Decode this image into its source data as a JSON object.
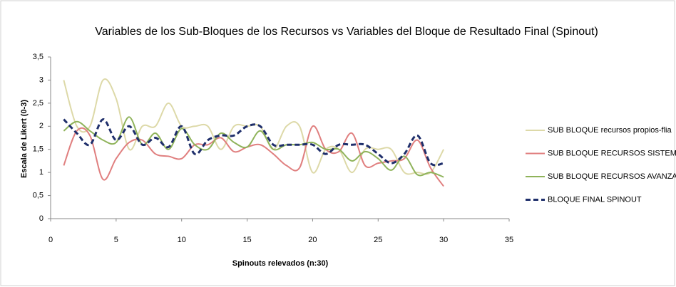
{
  "chart_data": {
    "type": "line",
    "title": "Variables de los Sub-Bloques de los Recursos vs Variables del Bloque de Resultado Final (Spinout)",
    "x_label": "Spinouts relevados (n:30)",
    "y_label": "Escala de Likert (0-3)",
    "x": [
      1,
      2,
      3,
      4,
      5,
      6,
      7,
      8,
      9,
      10,
      11,
      12,
      13,
      14,
      15,
      16,
      17,
      18,
      19,
      20,
      21,
      22,
      23,
      24,
      25,
      26,
      27,
      28,
      29,
      30
    ],
    "series": [
      {
        "name": "SUB BLOQUE recursos propios-flia",
        "color": "#ddd9a8",
        "dash": false,
        "values": [
          3,
          2,
          2,
          3,
          2.6,
          1.5,
          2,
          2,
          2.5,
          2,
          2,
          2,
          1.5,
          2,
          2,
          2,
          1.5,
          2,
          2,
          1,
          1.5,
          1.5,
          1,
          1.5,
          1.5,
          1.5,
          1,
          1,
          1,
          1.5
        ]
      },
      {
        "name": "SUB BLOQUE RECURSOS SISTEMA CyT",
        "color": "#e07f7f",
        "dash": false,
        "values": [
          1.15,
          1.9,
          1.8,
          0.85,
          1.3,
          1.65,
          1.7,
          1.4,
          1.35,
          1.3,
          1.6,
          1.6,
          1.75,
          1.45,
          1.55,
          1.6,
          1.4,
          1.15,
          1.1,
          2,
          1.5,
          1.45,
          1.85,
          1.15,
          1.2,
          1.25,
          1.3,
          1.7,
          1.1,
          0.7
        ]
      },
      {
        "name": "SUB BLOQUE RECURSOS AVANZADOS",
        "color": "#8fb35a",
        "dash": false,
        "values": [
          1.9,
          2.1,
          1.9,
          1.7,
          1.65,
          2.2,
          1.6,
          1.85,
          1.5,
          1.95,
          1.6,
          1.5,
          1.85,
          1.65,
          1.55,
          1.9,
          1.5,
          1.6,
          1.6,
          1.65,
          1.5,
          1.5,
          1.25,
          1.45,
          1.3,
          1.05,
          1.35,
          0.95,
          1,
          0.9
        ]
      },
      {
        "name": "BLOQUE FINAL SPINOUT",
        "color": "#1f2f6b",
        "dash": true,
        "values": [
          2.15,
          1.85,
          1.6,
          2.15,
          1.7,
          2,
          1.6,
          1.75,
          1.55,
          2,
          1.4,
          1.7,
          1.8,
          1.8,
          2,
          2,
          1.6,
          1.6,
          1.6,
          1.6,
          1.4,
          1.6,
          1.6,
          1.6,
          1.4,
          1.2,
          1.4,
          1.8,
          1.2,
          1.2
        ]
      }
    ],
    "xlim": [
      0,
      35
    ],
    "xticks": [
      0,
      5,
      10,
      15,
      20,
      25,
      30,
      35
    ],
    "ylim": [
      0,
      3.5
    ],
    "yticks": [
      0,
      {
        "value": 0.5,
        "label": "0,5"
      },
      1,
      {
        "value": 1.5,
        "label": "1,5"
      },
      2,
      {
        "value": 2.5,
        "label": "2,5"
      },
      3,
      {
        "value": 3.5,
        "label": "3,5"
      }
    ],
    "grid": false,
    "legend": "right"
  }
}
